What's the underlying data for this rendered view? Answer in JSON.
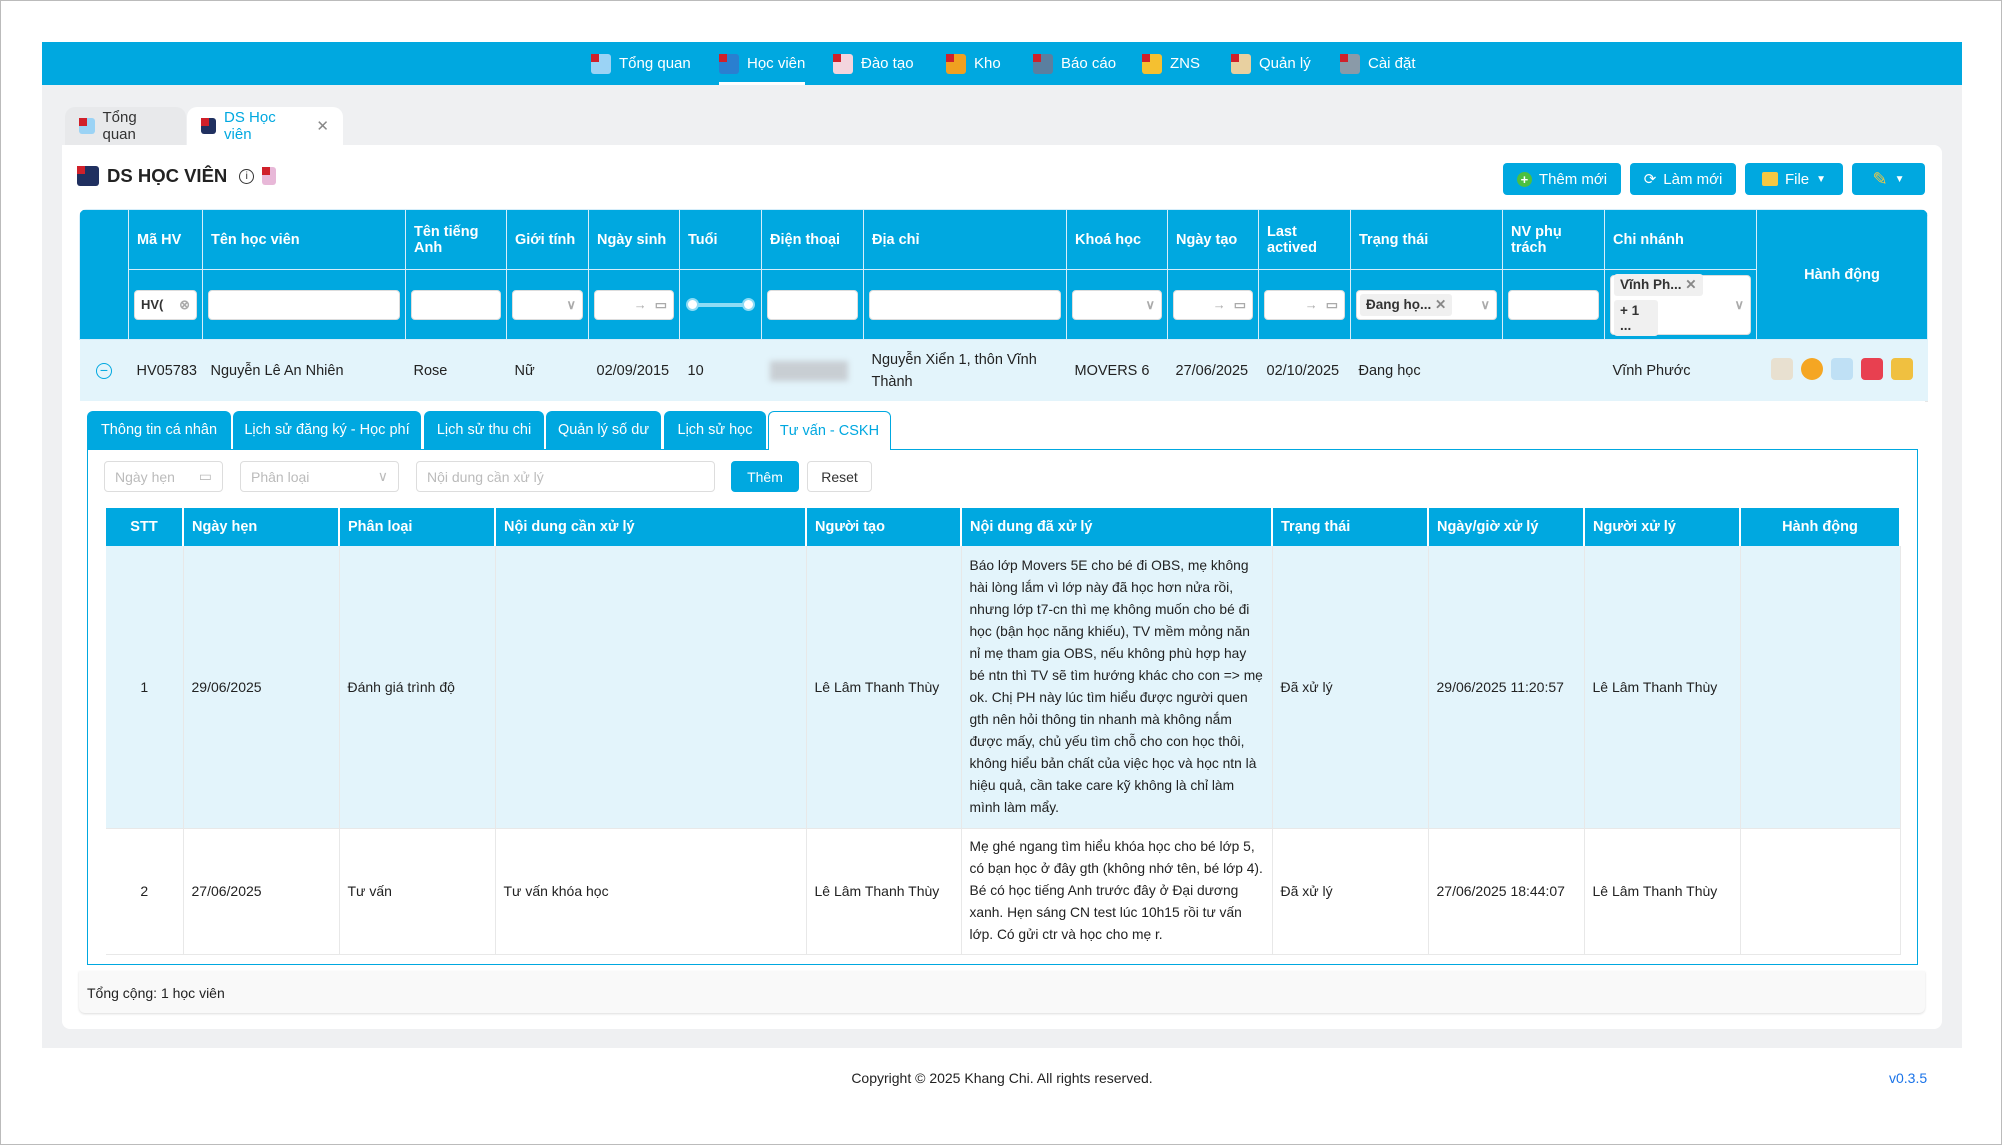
{
  "nav": [
    {
      "label": "Tổng quan",
      "icon": "dashboard-icon"
    },
    {
      "label": "Học viên",
      "icon": "student-icon",
      "active": true
    },
    {
      "label": "Đào tạo",
      "icon": "training-icon"
    },
    {
      "label": "Kho",
      "icon": "warehouse-icon"
    },
    {
      "label": "Báo cáo",
      "icon": "report-icon"
    },
    {
      "label": "ZNS",
      "icon": "mail-icon"
    },
    {
      "label": "Quản lý",
      "icon": "manage-icon"
    },
    {
      "label": "Cài đặt",
      "icon": "settings-icon"
    }
  ],
  "page_tabs": [
    {
      "label": "Tổng quan"
    },
    {
      "label": "DS Học viên",
      "active": true
    }
  ],
  "title": "DS HỌC VIÊN",
  "toolbar": {
    "add": "Thêm mới",
    "refresh": "Làm mới",
    "file": "File"
  },
  "main_table": {
    "headers": [
      "Mã HV",
      "Tên học viên",
      "Tên tiếng Anh",
      "Giới tính",
      "Ngày sinh",
      "Tuổi",
      "Điện thoại",
      "Địa chỉ",
      "Khoá học",
      "Ngày tạo",
      "Last actived",
      "Trạng thái",
      "NV phụ trách",
      "Chi nhánh",
      "Hành động"
    ],
    "filters": {
      "ma_hv": "HV(",
      "trang_thai_tag": "Đang họ...",
      "chi_nhanh_tag": "Vĩnh Ph...",
      "chi_nhanh_more": "+ 1 ...",
      "date_sep": "→"
    },
    "row": {
      "ma_hv": "HV05783",
      "ten": "Nguyễn Lê An Nhiên",
      "ten_tieng_anh": "Rose",
      "gioi_tinh": "Nữ",
      "ngay_sinh": "02/09/2015",
      "tuoi": "10",
      "dia_chi": "Nguyễn Xiển 1, thôn Vĩnh Thành",
      "khoa_hoc": "MOVERS 6",
      "ngay_tao": "27/06/2025",
      "last_actived": "02/10/2025",
      "trang_thai": "Đang học",
      "chi_nhanh": "Vĩnh Phước"
    }
  },
  "sub_tabs": [
    "Thông tin cá nhân",
    "Lịch sử đăng ký - Học phí",
    "Lịch sử thu chi",
    "Quản lý số dư",
    "Lịch sử học",
    "Tư vấn - CSKH"
  ],
  "sub_filters": {
    "ngay_hen": "Ngày hẹn",
    "phan_loai": "Phân loại",
    "noi_dung": "Nội dung cần xử lý",
    "add": "Thêm",
    "reset": "Reset"
  },
  "sub_table": {
    "headers": [
      "STT",
      "Ngày hẹn",
      "Phân loại",
      "Nội dung cần xử lý",
      "Người tạo",
      "Nội dung đã xử lý",
      "Trạng thái",
      "Ngày/giờ xử lý",
      "Người xử lý",
      "Hành động"
    ],
    "rows": [
      [
        "1",
        "29/06/2025",
        "Đánh giá trình độ",
        "",
        "Lê Lâm Thanh Thùy",
        "Báo lớp Movers 5E cho bé đi OBS, mẹ không hài lòng lắm vì lớp này đã học hơn nửa rồi, nhưng lớp t7-cn thì mẹ không muốn cho bé đi học (bận học năng khiếu), TV mềm mỏng năn nỉ mẹ tham gia OBS, nếu không phù hợp hay bé ntn thì TV sẽ tìm hướng khác cho con => mẹ ok. Chị PH này lúc tìm hiểu được người quen gth nên hỏi thông tin nhanh mà không nắm được mấy, chủ yếu tìm chỗ cho con học thôi, không hiểu bản chất của việc học và học ntn là hiệu quả, cần take care kỹ không là chỉ làm mình làm mẩy.",
        "Đã xử lý",
        "29/06/2025 11:20:57",
        "Lê Lâm Thanh Thùy",
        ""
      ],
      [
        "2",
        "27/06/2025",
        "Tư vấn",
        "Tư vấn khóa học",
        "Lê Lâm Thanh Thùy",
        "Mẹ ghé ngang tìm hiểu khóa học cho bé lớp 5, có bạn học ở đây gth (không nhớ tên, bé lớp 4). Bé có học tiếng Anh trước đây ở Đại dương xanh. Hẹn sáng CN test lúc 10h15 rồi tư vấn lớp. Có gửi ctr và học cho mẹ r.",
        "Đã xử lý",
        "27/06/2025 18:44:07",
        "Lê Lâm Thanh Thùy",
        ""
      ]
    ]
  },
  "total": "Tổng cộng: 1 học viên",
  "footer": {
    "copyright": "Copyright © 2025 Khang Chi. All rights reserved.",
    "version": "v0.3.5"
  },
  "colors": {
    "primary": "#00a8e0",
    "row_bg": "#e3f4fb"
  }
}
